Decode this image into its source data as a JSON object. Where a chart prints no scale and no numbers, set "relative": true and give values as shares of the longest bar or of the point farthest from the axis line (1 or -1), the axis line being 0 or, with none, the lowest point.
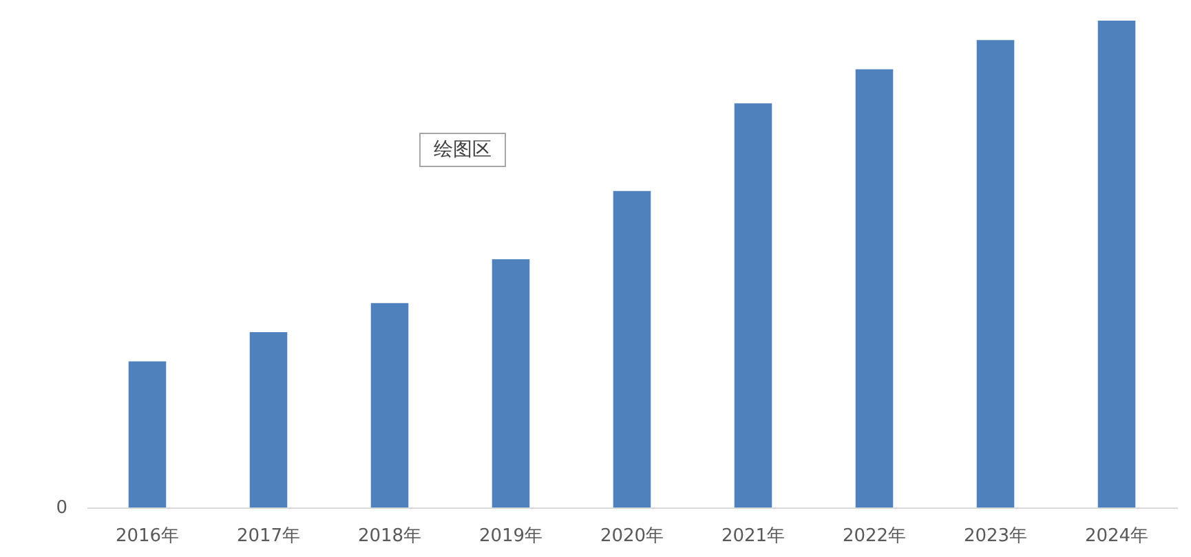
{
  "chart_data": {
    "type": "bar",
    "relative": true,
    "categories": [
      "2016年",
      "2017年",
      "2018年",
      "2019年",
      "2020年",
      "2021年",
      "2022年",
      "2023年",
      "2024年"
    ],
    "values": [
      0.3,
      0.36,
      0.42,
      0.51,
      0.65,
      0.83,
      0.9,
      0.96,
      1
    ],
    "color": "#4f81bd",
    "annotations": [
      "0",
      "绘图区"
    ]
  }
}
